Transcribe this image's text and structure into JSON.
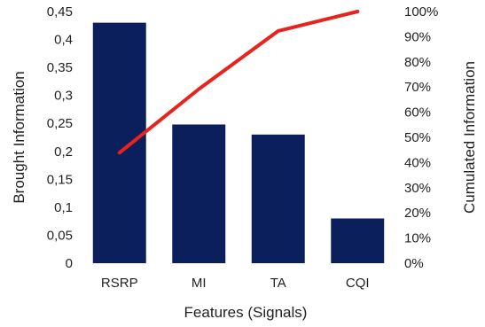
{
  "chart_data": {
    "type": "bar",
    "xlabel": "Features (Signals)",
    "ylabel": "Brought Information",
    "y2label": "Cumulated Information",
    "categories": [
      "RSRP",
      "MI",
      "TA",
      "CQI"
    ],
    "series": [
      {
        "type": "bar",
        "values": [
          0.43,
          0.248,
          0.23,
          0.08
        ],
        "color": "#0a1f5c"
      },
      {
        "type": "line",
        "axis": "right",
        "values": [
          43.9,
          69.2,
          92.3,
          100
        ],
        "color": "#e8231d"
      }
    ],
    "ylim": [
      0,
      0.45
    ],
    "y2lim": [
      0,
      100
    ],
    "yticks": [
      "0",
      "0,05",
      "0,1",
      "0,15",
      "0,2",
      "0,25",
      "0,3",
      "0,35",
      "0,4",
      "0,45"
    ],
    "y2ticks": [
      "0%",
      "10%",
      "20%",
      "30%",
      "40%",
      "50%",
      "60%",
      "70%",
      "80%",
      "90%",
      "100%"
    ],
    "grid": false,
    "legend": "none"
  }
}
